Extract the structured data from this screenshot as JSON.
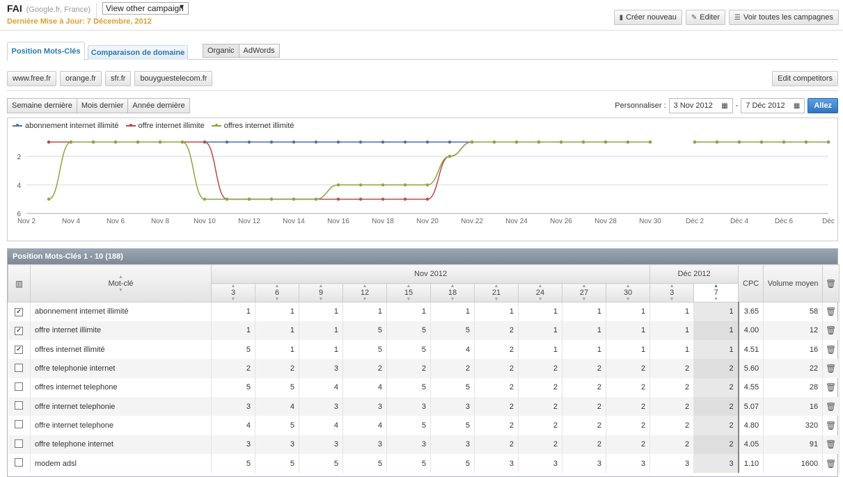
{
  "header": {
    "title": "FAI",
    "subtitle": "(Google.fr, France)",
    "campaign_select": "View other campaign",
    "updated": "Dernière Mise à Jour: 7 Décembre, 2012",
    "actions": {
      "create": "Créer nouveau",
      "edit": "Editer",
      "view_all": "Voir toutes les campagnes"
    }
  },
  "tabs": {
    "positions": "Position Mots-Clés",
    "domain_compare": "Comparaison de domaine",
    "organic": "Organic",
    "adwords": "AdWords"
  },
  "domains": [
    "www.free.fr",
    "orange.fr",
    "sfr.fr",
    "bouyguestelecom.fr"
  ],
  "edit_competitors": "Edit competitors",
  "period": {
    "last_week": "Semaine dernière",
    "last_month": "Mois dernier",
    "last_year": "Année dernière",
    "custom_label": "Personnaliser :",
    "date_from": "3 Nov 2012",
    "date_sep": "-",
    "date_to": "7 Déc 2012",
    "go": "Allez"
  },
  "chart_data": {
    "type": "line",
    "x_labels": [
      "Nov 2",
      "Nov 4",
      "Nov 6",
      "Nov 8",
      "Nov 10",
      "Nov 12",
      "Nov 14",
      "Nov 16",
      "Nov 18",
      "Nov 20",
      "Nov 22",
      "Nov 24",
      "Nov 26",
      "Nov 28",
      "Nov 30",
      "Déc 2",
      "Déc 4",
      "Déc 6",
      "Déc"
    ],
    "y_ticks": [
      2,
      4,
      6
    ],
    "ylim": [
      0.5,
      6
    ],
    "y_reversed": true,
    "grid": true,
    "legend": "top-left",
    "series": [
      {
        "name": "abonnement internet illimité",
        "color": "#4a6fa5",
        "points": [
          [
            3,
            1
          ],
          [
            4,
            1
          ],
          [
            5,
            1
          ],
          [
            6,
            1
          ],
          [
            7,
            1
          ],
          [
            8,
            1
          ],
          [
            9,
            1
          ],
          [
            10,
            1
          ],
          [
            11,
            1
          ],
          [
            12,
            1
          ],
          [
            13,
            1
          ],
          [
            14,
            1
          ],
          [
            15,
            1
          ],
          [
            16,
            1
          ],
          [
            17,
            1
          ],
          [
            18,
            1
          ],
          [
            19,
            1
          ],
          [
            20,
            1
          ],
          [
            21,
            1
          ],
          [
            22,
            1
          ],
          [
            23,
            1
          ],
          [
            24,
            1
          ],
          [
            25,
            1
          ],
          [
            26,
            1
          ],
          [
            27,
            1
          ],
          [
            28,
            1
          ],
          [
            29,
            1
          ],
          [
            30,
            1
          ],
          [
            32,
            1
          ],
          [
            33,
            1
          ],
          [
            34,
            1
          ],
          [
            35,
            1
          ],
          [
            36,
            1
          ],
          [
            37,
            1
          ],
          [
            38,
            1
          ]
        ]
      },
      {
        "name": "offre internet illimite",
        "color": "#b94a48",
        "points": [
          [
            3,
            1
          ],
          [
            4,
            1
          ],
          [
            5,
            1
          ],
          [
            6,
            1
          ],
          [
            7,
            1
          ],
          [
            8,
            1
          ],
          [
            9,
            1
          ],
          [
            10,
            1
          ],
          [
            11,
            5
          ],
          [
            12,
            5
          ],
          [
            13,
            5
          ],
          [
            14,
            5
          ],
          [
            15,
            5
          ],
          [
            16,
            5
          ],
          [
            17,
            5
          ],
          [
            18,
            5
          ],
          [
            19,
            5
          ],
          [
            20,
            5
          ],
          [
            21,
            2
          ],
          [
            22,
            1
          ],
          [
            23,
            1
          ],
          [
            24,
            1
          ],
          [
            25,
            1
          ],
          [
            26,
            1
          ],
          [
            27,
            1
          ],
          [
            28,
            1
          ],
          [
            29,
            1
          ],
          [
            30,
            1
          ],
          [
            32,
            1
          ],
          [
            33,
            1
          ],
          [
            34,
            1
          ],
          [
            35,
            1
          ],
          [
            36,
            1
          ],
          [
            37,
            1
          ],
          [
            38,
            1
          ]
        ]
      },
      {
        "name": "offres internet illimité",
        "color": "#8aa63f",
        "points": [
          [
            3,
            5
          ],
          [
            4,
            1
          ],
          [
            5,
            1
          ],
          [
            6,
            1
          ],
          [
            7,
            1
          ],
          [
            8,
            1
          ],
          [
            9,
            1
          ],
          [
            10,
            5
          ],
          [
            11,
            5
          ],
          [
            12,
            5
          ],
          [
            13,
            5
          ],
          [
            14,
            5
          ],
          [
            15,
            5
          ],
          [
            16,
            4
          ],
          [
            17,
            4
          ],
          [
            18,
            4
          ],
          [
            19,
            4
          ],
          [
            20,
            4
          ],
          [
            21,
            2
          ],
          [
            22,
            1
          ],
          [
            23,
            1
          ],
          [
            24,
            1
          ],
          [
            25,
            1
          ],
          [
            26,
            1
          ],
          [
            27,
            1
          ],
          [
            28,
            1
          ],
          [
            29,
            1
          ],
          [
            30,
            1
          ],
          [
            32,
            1
          ],
          [
            33,
            1
          ],
          [
            34,
            1
          ],
          [
            35,
            1
          ],
          [
            36,
            1
          ],
          [
            37,
            1
          ],
          [
            38,
            1
          ]
        ]
      }
    ]
  },
  "grid": {
    "title": "Position Mots-Clés 1 - 10 (188)",
    "col_keyword": "Mot-clé",
    "month_nov": "Nov 2012",
    "month_dec": "Déc 2012",
    "days": [
      "3",
      "6",
      "9",
      "12",
      "15",
      "18",
      "21",
      "24",
      "27",
      "30",
      "3",
      "7"
    ],
    "col_cpc": "CPC",
    "col_volume": "Volume moyen",
    "rows": [
      {
        "checked": true,
        "kw": "abonnement internet illimité",
        "pos": [
          "1",
          "1",
          "1",
          "1",
          "1",
          "1",
          "1",
          "1",
          "1",
          "1",
          "1",
          "1"
        ],
        "cpc": "3.65",
        "vol": "58"
      },
      {
        "checked": true,
        "kw": "offre internet illimite",
        "pos": [
          "1",
          "1",
          "1",
          "5",
          "5",
          "5",
          "2",
          "1",
          "1",
          "1",
          "1",
          "1"
        ],
        "cpc": "4.00",
        "vol": "12"
      },
      {
        "checked": true,
        "kw": "offres internet illimité",
        "pos": [
          "5",
          "1",
          "1",
          "5",
          "5",
          "4",
          "2",
          "1",
          "1",
          "1",
          "1",
          "1"
        ],
        "cpc": "4.51",
        "vol": "16"
      },
      {
        "checked": false,
        "kw": "offre telephonie internet",
        "pos": [
          "2",
          "2",
          "3",
          "2",
          "2",
          "2",
          "2",
          "2",
          "2",
          "2",
          "2",
          "2"
        ],
        "cpc": "5.60",
        "vol": "22"
      },
      {
        "checked": false,
        "kw": "offres internet telephone",
        "pos": [
          "5",
          "5",
          "4",
          "4",
          "5",
          "5",
          "2",
          "2",
          "2",
          "2",
          "2",
          "2"
        ],
        "cpc": "4.55",
        "vol": "28"
      },
      {
        "checked": false,
        "kw": "offre internet telephonie",
        "pos": [
          "3",
          "4",
          "3",
          "3",
          "3",
          "3",
          "2",
          "2",
          "2",
          "2",
          "2",
          "2"
        ],
        "cpc": "5.07",
        "vol": "16"
      },
      {
        "checked": false,
        "kw": "offre internet telephone",
        "pos": [
          "4",
          "5",
          "4",
          "4",
          "5",
          "5",
          "2",
          "2",
          "2",
          "2",
          "2",
          "2"
        ],
        "cpc": "4.80",
        "vol": "320"
      },
      {
        "checked": false,
        "kw": "offre telephone internet",
        "pos": [
          "3",
          "3",
          "3",
          "3",
          "3",
          "3",
          "2",
          "2",
          "2",
          "2",
          "2",
          "2"
        ],
        "cpc": "4.05",
        "vol": "91"
      },
      {
        "checked": false,
        "kw": "modem adsl",
        "pos": [
          "5",
          "5",
          "5",
          "5",
          "5",
          "5",
          "3",
          "3",
          "3",
          "3",
          "3",
          "3"
        ],
        "cpc": "1.10",
        "vol": "1600"
      }
    ]
  },
  "icons": {
    "create": "document-icon",
    "edit": "pencil-icon",
    "list": "list-icon",
    "calendar": "calendar-icon",
    "trash": "trash-icon",
    "column-chooser": "columns-icon",
    "sort": "sort-arrows-icon"
  }
}
